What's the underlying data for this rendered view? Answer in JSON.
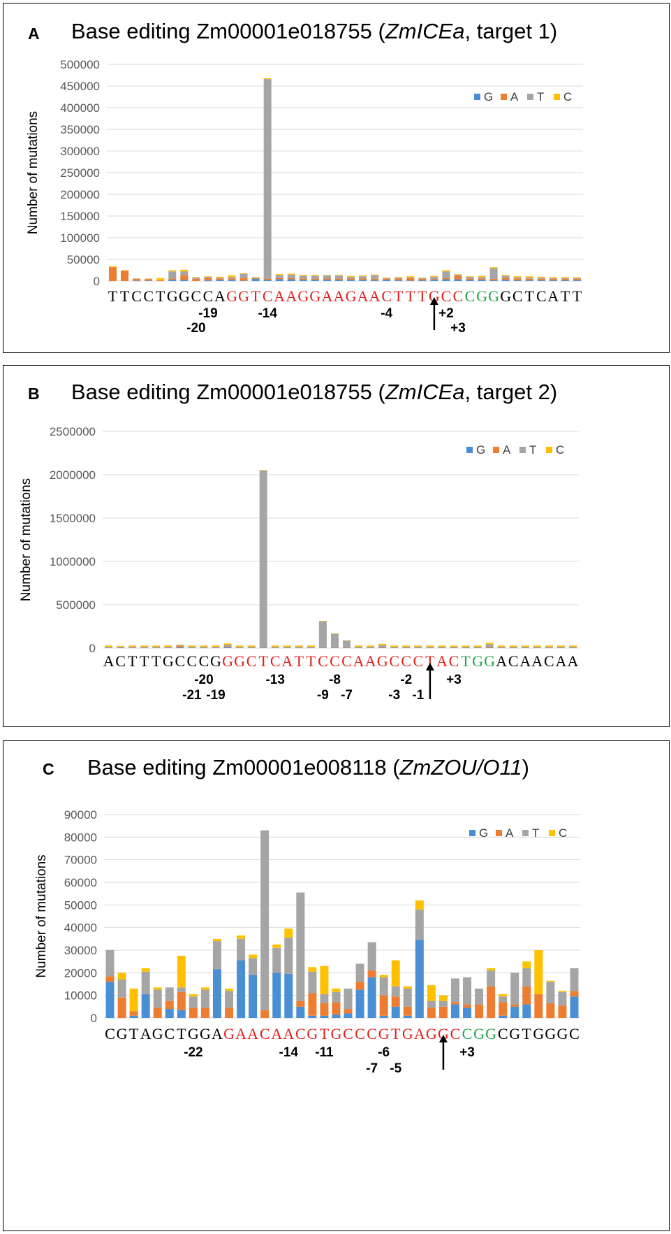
{
  "colors": {
    "G": "#4a8fd4",
    "A": "#ed7d31",
    "T": "#a5a5a5",
    "C": "#ffc000",
    "seq_black": "#000000",
    "seq_red": "#e0201b",
    "seq_green": "#22a447"
  },
  "panels": [
    {
      "letter": "A",
      "title_prefix": "Base editing Zm00001e018755 (",
      "title_italic": "ZmICEa",
      "title_suffix": ", target 1)",
      "ylabel": "Number of mutations",
      "yticks": [
        "0",
        "50000",
        "100000",
        "150000",
        "200000",
        "250000",
        "300000",
        "350000",
        "400000",
        "450000",
        "500000"
      ],
      "legend": [
        "G",
        "A",
        "T",
        "C"
      ],
      "sequence": [
        "T",
        "T",
        "C",
        "C",
        "T",
        "G",
        "G",
        "C",
        "C",
        "A",
        "G",
        "G",
        "T",
        "C",
        "A",
        "A",
        "G",
        "G",
        "A",
        "A",
        "G",
        "A",
        "A",
        "C",
        "T",
        "T",
        "T",
        "G",
        "C",
        "C",
        "C",
        "G",
        "G",
        "G",
        "C",
        "T",
        "C",
        "A",
        "T",
        "T"
      ],
      "seq_colors": [
        "k",
        "k",
        "k",
        "k",
        "k",
        "k",
        "k",
        "k",
        "k",
        "k",
        "r",
        "r",
        "r",
        "r",
        "r",
        "r",
        "r",
        "r",
        "r",
        "r",
        "r",
        "r",
        "r",
        "r",
        "r",
        "r",
        "r",
        "r",
        "r",
        "r",
        "g",
        "g",
        "g",
        "k",
        "k",
        "k",
        "k",
        "k",
        "k",
        "k"
      ],
      "positions": [
        {
          "label": "-19",
          "index": 8,
          "row": 0
        },
        {
          "label": "-20",
          "index": 7,
          "row": 1
        },
        {
          "label": "-14",
          "index": 13,
          "row": 0
        },
        {
          "label": "-4",
          "index": 23,
          "row": 0
        },
        {
          "label": "+2",
          "index": 28,
          "row": 0
        },
        {
          "label": "+3",
          "index": 29,
          "row": 1
        }
      ],
      "arrow_index": 27
    },
    {
      "letter": "B",
      "title_prefix": "Base editing Zm00001e018755 (",
      "title_italic": "ZmICEa",
      "title_suffix": ", target 2)",
      "ylabel": "Number of mutations",
      "yticks": [
        "0",
        "500000",
        "1000000",
        "1500000",
        "2000000",
        "2500000"
      ],
      "legend": [
        "G",
        "A",
        "T",
        "C"
      ],
      "sequence": [
        "A",
        "C",
        "T",
        "T",
        "T",
        "G",
        "C",
        "C",
        "C",
        "G",
        "G",
        "G",
        "C",
        "T",
        "C",
        "A",
        "T",
        "T",
        "C",
        "C",
        "C",
        "A",
        "A",
        "G",
        "C",
        "C",
        "C",
        "T",
        "A",
        "C",
        "T",
        "G",
        "G",
        "A",
        "C",
        "A",
        "A",
        "C",
        "A",
        "A"
      ],
      "seq_colors": [
        "k",
        "k",
        "k",
        "k",
        "k",
        "k",
        "k",
        "k",
        "k",
        "k",
        "r",
        "r",
        "r",
        "r",
        "r",
        "r",
        "r",
        "r",
        "r",
        "r",
        "r",
        "r",
        "r",
        "r",
        "r",
        "r",
        "r",
        "r",
        "r",
        "r",
        "g",
        "g",
        "g",
        "k",
        "k",
        "k",
        "k",
        "k",
        "k",
        "k"
      ],
      "positions": [
        {
          "label": "-20",
          "index": 8,
          "row": 0
        },
        {
          "label": "-21",
          "index": 7,
          "row": 1
        },
        {
          "label": "-19",
          "index": 9,
          "row": 1
        },
        {
          "label": "-13",
          "index": 14,
          "row": 0
        },
        {
          "label": "-8",
          "index": 19,
          "row": 0
        },
        {
          "label": "-9",
          "index": 18,
          "row": 1
        },
        {
          "label": "-7",
          "index": 20,
          "row": 1
        },
        {
          "label": "-2",
          "index": 25,
          "row": 0
        },
        {
          "label": "-3",
          "index": 24,
          "row": 1
        },
        {
          "label": "-1",
          "index": 26,
          "row": 1
        },
        {
          "label": "+3",
          "index": 29,
          "row": 0
        }
      ],
      "arrow_index": 27
    },
    {
      "letter": "C",
      "title_prefix": "Base editing Zm00001e008118 (",
      "title_italic": "ZmZOU/O11",
      "title_suffix": ")",
      "ylabel": "Number of mutations",
      "yticks": [
        "0",
        "10000",
        "20000",
        "30000",
        "40000",
        "50000",
        "60000",
        "70000",
        "80000",
        "90000"
      ],
      "legend": [
        "G",
        "A",
        "T",
        "C"
      ],
      "sequence": [
        "C",
        "G",
        "T",
        "A",
        "G",
        "C",
        "T",
        "G",
        "G",
        "A",
        "G",
        "A",
        "A",
        "C",
        "A",
        "A",
        "C",
        "G",
        "T",
        "G",
        "C",
        "C",
        "C",
        "G",
        "T",
        "G",
        "A",
        "G",
        "G",
        "C",
        "C",
        "G",
        "G",
        "C",
        "G",
        "T",
        "G",
        "G",
        "G",
        "C"
      ],
      "seq_colors": [
        "k",
        "k",
        "k",
        "k",
        "k",
        "k",
        "k",
        "k",
        "k",
        "k",
        "r",
        "r",
        "r",
        "r",
        "r",
        "r",
        "r",
        "r",
        "r",
        "r",
        "r",
        "r",
        "r",
        "r",
        "r",
        "r",
        "r",
        "r",
        "r",
        "r",
        "g",
        "g",
        "g",
        "k",
        "k",
        "k",
        "k",
        "k",
        "k",
        "k"
      ],
      "positions": [
        {
          "label": "-22",
          "index": 7,
          "row": 0
        },
        {
          "label": "-14",
          "index": 15,
          "row": 0
        },
        {
          "label": "-11",
          "index": 18,
          "row": 0
        },
        {
          "label": "-6",
          "index": 23,
          "row": 0
        },
        {
          "label": "-7",
          "index": 22,
          "row": 1
        },
        {
          "label": "-5",
          "index": 24,
          "row": 1
        },
        {
          "label": "+3",
          "index": 30,
          "row": 0
        }
      ],
      "arrow_index": 28
    }
  ],
  "chart_data": [
    {
      "type": "bar",
      "stacked": true,
      "title": "Base editing Zm00001e018755 (ZmICEa, target 1)",
      "ylabel": "Number of mutations",
      "ylim": [
        0,
        500000
      ],
      "legend_position": "top-right",
      "categories": [
        "T",
        "T",
        "C",
        "C",
        "T",
        "G",
        "G",
        "C",
        "C",
        "A",
        "G",
        "G",
        "T",
        "C",
        "A",
        "A",
        "G",
        "G",
        "A",
        "A",
        "G",
        "A",
        "A",
        "C",
        "T",
        "T",
        "T",
        "G",
        "C",
        "C",
        "C",
        "G",
        "G",
        "G",
        "C",
        "T",
        "C",
        "A",
        "T",
        "T"
      ],
      "series": [
        {
          "name": "G",
          "values": [
            0,
            0,
            1000,
            1000,
            0,
            3000,
            3000,
            0,
            2000,
            3000,
            3000,
            1000,
            5000,
            3000,
            4000,
            4000,
            3000,
            3000,
            3000,
            3000,
            3000,
            3000,
            2000,
            3000,
            2000,
            1000,
            2000,
            3000,
            4000,
            4000,
            3000,
            3000,
            2000,
            3000,
            2000,
            2000,
            2000,
            2000,
            2000,
            2000
          ]
        },
        {
          "name": "A",
          "values": [
            32000,
            24000,
            4000,
            3000,
            2000,
            3000,
            11000,
            5000,
            5000,
            3000,
            3000,
            6000,
            2000,
            3000,
            3000,
            3000,
            3000,
            3000,
            3000,
            3000,
            3000,
            3000,
            3000,
            3000,
            4000,
            6000,
            3000,
            2000,
            3000,
            8000,
            3000,
            3000,
            3000,
            4000,
            4000,
            3000,
            3000,
            3000,
            3000,
            3000
          ]
        },
        {
          "name": "T",
          "values": [
            0,
            0,
            1000,
            1000,
            0,
            16000,
            8000,
            3000,
            3000,
            2000,
            3000,
            10000,
            1000,
            460000,
            7000,
            8000,
            6000,
            6000,
            7000,
            7000,
            4000,
            5000,
            9000,
            1000,
            2000,
            2000,
            2000,
            5000,
            15000,
            3000,
            4000,
            3000,
            25000,
            5000,
            3000,
            3000,
            3000,
            2000,
            2000,
            2000
          ]
        },
        {
          "name": "C",
          "values": [
            2000,
            1000,
            0,
            1000,
            5000,
            3000,
            4000,
            1000,
            1000,
            2000,
            4000,
            1000,
            1000,
            2000,
            2000,
            2000,
            2000,
            2000,
            1000,
            1000,
            2000,
            2000,
            1000,
            1000,
            1000,
            2000,
            1000,
            2000,
            3000,
            1000,
            1000,
            3000,
            2000,
            2000,
            2000,
            3000,
            2000,
            2000,
            2000,
            2000
          ]
        }
      ]
    },
    {
      "type": "bar",
      "stacked": true,
      "title": "Base editing Zm00001e018755 (ZmICEa, target 2)",
      "ylabel": "Number of mutations",
      "ylim": [
        0,
        2500000
      ],
      "legend_position": "top-right",
      "categories": [
        "A",
        "C",
        "T",
        "T",
        "T",
        "G",
        "C",
        "C",
        "C",
        "G",
        "G",
        "G",
        "C",
        "T",
        "C",
        "A",
        "T",
        "T",
        "C",
        "C",
        "C",
        "A",
        "A",
        "G",
        "C",
        "C",
        "C",
        "T",
        "A",
        "C",
        "T",
        "G",
        "G",
        "A",
        "C",
        "A",
        "A",
        "C",
        "A",
        "A"
      ],
      "series": [
        {
          "name": "G",
          "values": [
            5000,
            5000,
            5000,
            5000,
            5000,
            5000,
            10000,
            5000,
            5000,
            5000,
            10000,
            5000,
            5000,
            5000,
            5000,
            5000,
            5000,
            5000,
            5000,
            5000,
            5000,
            5000,
            5000,
            5000,
            5000,
            5000,
            5000,
            5000,
            5000,
            5000,
            5000,
            5000,
            5000,
            5000,
            5000,
            5000,
            5000,
            5000,
            5000,
            5000
          ]
        },
        {
          "name": "A",
          "values": [
            5000,
            5000,
            5000,
            5000,
            5000,
            5000,
            20000,
            5000,
            5000,
            5000,
            10000,
            5000,
            5000,
            5000,
            5000,
            5000,
            5000,
            5000,
            5000,
            5000,
            5000,
            5000,
            5000,
            10000,
            5000,
            5000,
            5000,
            5000,
            5000,
            5000,
            5000,
            5000,
            10000,
            5000,
            5000,
            5000,
            5000,
            5000,
            5000,
            5000
          ]
        },
        {
          "name": "T",
          "values": [
            5000,
            5000,
            5000,
            5000,
            5000,
            5000,
            5000,
            5000,
            5000,
            5000,
            20000,
            5000,
            5000,
            2040000,
            5000,
            5000,
            5000,
            5000,
            300000,
            155000,
            75000,
            5000,
            5000,
            20000,
            5000,
            5000,
            5000,
            5000,
            5000,
            5000,
            5000,
            5000,
            30000,
            5000,
            5000,
            5000,
            5000,
            5000,
            5000,
            5000
          ]
        },
        {
          "name": "C",
          "values": [
            15000,
            10000,
            15000,
            15000,
            15000,
            15000,
            5000,
            15000,
            15000,
            15000,
            15000,
            15000,
            15000,
            5000,
            15000,
            15000,
            15000,
            15000,
            5000,
            5000,
            5000,
            15000,
            15000,
            15000,
            15000,
            15000,
            15000,
            15000,
            15000,
            15000,
            15000,
            15000,
            15000,
            15000,
            15000,
            15000,
            15000,
            15000,
            15000,
            15000
          ]
        }
      ]
    },
    {
      "type": "bar",
      "stacked": true,
      "title": "Base editing Zm00001e008118 (ZmZOU/O11)",
      "ylabel": "Number of mutations",
      "ylim": [
        0,
        90000
      ],
      "legend_position": "top-right",
      "categories": [
        "C",
        "G",
        "T",
        "A",
        "G",
        "C",
        "T",
        "G",
        "G",
        "A",
        "G",
        "A",
        "A",
        "C",
        "A",
        "A",
        "C",
        "G",
        "T",
        "G",
        "C",
        "C",
        "C",
        "G",
        "T",
        "G",
        "A",
        "G",
        "G",
        "C",
        "C",
        "G",
        "G",
        "C",
        "G",
        "T",
        "G",
        "G",
        "G",
        "C"
      ],
      "series": [
        {
          "name": "G",
          "values": [
            16000,
            0,
            1000,
            10500,
            0,
            4000,
            3500,
            0,
            0,
            21500,
            0,
            25500,
            19000,
            0,
            20000,
            19500,
            5000,
            1000,
            1000,
            1500,
            2000,
            12500,
            18000,
            1000,
            5000,
            1000,
            34500,
            0,
            0,
            6000,
            4500,
            0,
            0,
            1000,
            5000,
            6000,
            0,
            0,
            0,
            9500
          ]
        },
        {
          "name": "A",
          "values": [
            2500,
            9000,
            2000,
            0,
            4500,
            3500,
            8000,
            4500,
            4500,
            0,
            4500,
            0,
            0,
            3500,
            0,
            0,
            2500,
            10000,
            5500,
            5500,
            2000,
            3500,
            3000,
            9000,
            4500,
            4000,
            0,
            4500,
            5000,
            1000,
            1500,
            6000,
            14000,
            6000,
            1000,
            8000,
            10500,
            6500,
            5500,
            2500
          ]
        },
        {
          "name": "T",
          "values": [
            11500,
            8000,
            0,
            10000,
            8000,
            6000,
            2000,
            5000,
            8000,
            12500,
            7500,
            9500,
            7500,
            79500,
            11000,
            16000,
            48000,
            9500,
            4000,
            4500,
            9000,
            8000,
            12500,
            8000,
            4500,
            8000,
            13500,
            3000,
            2500,
            10500,
            12000,
            7000,
            7000,
            2500,
            14000,
            8000,
            0,
            9500,
            6000,
            10000
          ]
        },
        {
          "name": "C",
          "values": [
            0,
            3000,
            10000,
            1500,
            1000,
            0,
            14000,
            1000,
            1000,
            1000,
            1000,
            1500,
            1500,
            0,
            1500,
            4000,
            0,
            2000,
            12500,
            1500,
            0,
            0,
            0,
            1000,
            11500,
            1000,
            4000,
            7000,
            2500,
            0,
            0,
            0,
            1000,
            1000,
            0,
            3000,
            19500,
            500,
            500,
            0
          ]
        }
      ]
    }
  ]
}
